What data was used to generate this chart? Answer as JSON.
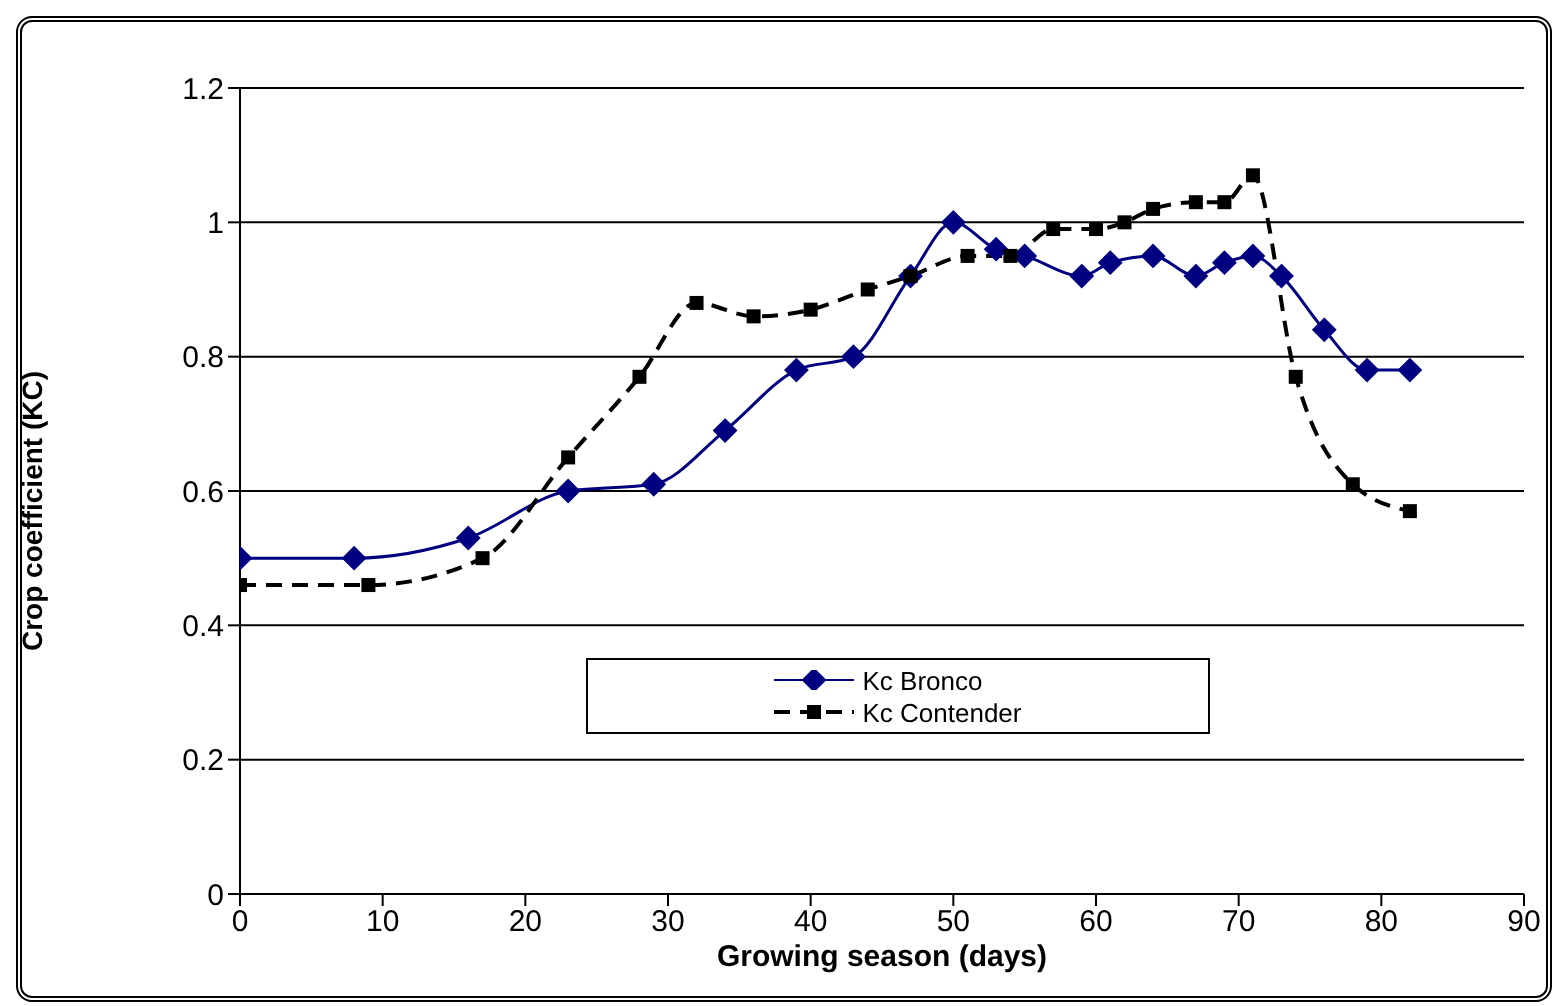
{
  "chart_data": {
    "type": "line",
    "xlabel": "Growing season (days)",
    "ylabel": "Crop coefficient (KC)",
    "xlim": [
      0,
      90
    ],
    "xticks": [
      0,
      10,
      20,
      30,
      40,
      50,
      60,
      70,
      80,
      90
    ],
    "ylim": [
      0,
      1.2
    ],
    "yticks": [
      0,
      0.2,
      0.4,
      0.6,
      0.8,
      1,
      1.2
    ],
    "grid": "y",
    "legend": "center",
    "series": [
      {
        "name": "Kc Bronco",
        "color": "#000080",
        "marker": "diamond",
        "line_style": "solid",
        "x": [
          0,
          8,
          16,
          23,
          29,
          34,
          39,
          43,
          47,
          50,
          53,
          55,
          59,
          61,
          64,
          67,
          69,
          71,
          73,
          76,
          79,
          82
        ],
        "values": [
          0.5,
          0.5,
          0.53,
          0.6,
          0.61,
          0.69,
          0.78,
          0.8,
          0.92,
          1.0,
          0.96,
          0.95,
          0.92,
          0.94,
          0.95,
          0.92,
          0.94,
          0.95,
          0.92,
          0.84,
          0.78,
          0.78
        ]
      },
      {
        "name": "Kc Contender",
        "color": "#000000",
        "marker": "square",
        "line_style": "dashed",
        "x": [
          0,
          9,
          17,
          23,
          28,
          32,
          36,
          40,
          44,
          47,
          51,
          54,
          57,
          60,
          62,
          64,
          67,
          69,
          71,
          74,
          78,
          82
        ],
        "values": [
          0.46,
          0.46,
          0.5,
          0.65,
          0.77,
          0.88,
          0.86,
          0.87,
          0.9,
          0.92,
          0.95,
          0.95,
          0.99,
          0.99,
          1.0,
          1.02,
          1.03,
          1.03,
          1.07,
          0.77,
          0.61,
          0.57
        ]
      }
    ]
  }
}
